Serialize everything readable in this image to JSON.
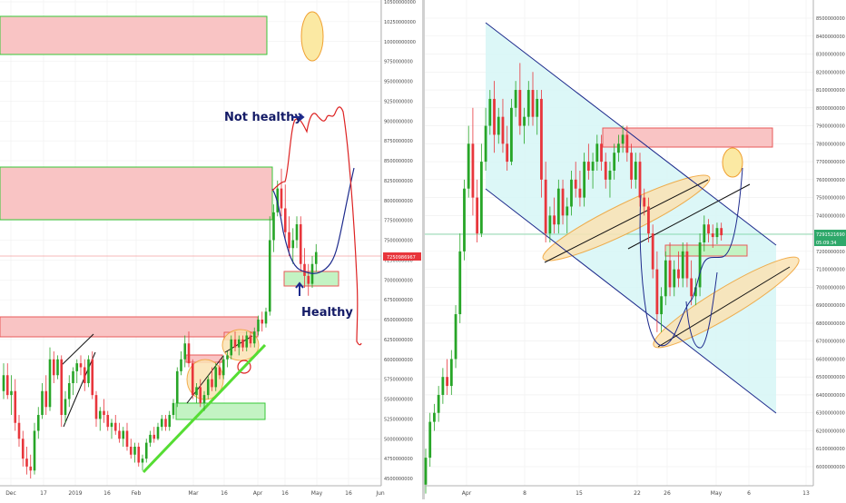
{
  "colors": {
    "up": "#27a527",
    "down": "#e8363c",
    "red_zone": "#f9b7b7",
    "green_zone": "#b6f0b6",
    "channel": "#1d2a8c",
    "ellipse_fill": "#fbe3b4",
    "ellipse_stroke": "#f0a030",
    "blue_path": "#1d2a8c",
    "red_path": "#dd2222",
    "teal_fill": "#d6f6f6",
    "green_line": "#55dd33"
  },
  "chart_data": [
    {
      "type": "candlestick",
      "panel": "left",
      "x_tick_labels": [
        "Dec",
        "17",
        "2019",
        "16",
        "Feb",
        "Mar",
        "16",
        "Apr",
        "16",
        "May",
        "16",
        "Jun"
      ],
      "y_tick_labels": [
        "10500000000",
        "10250000000",
        "10000000000",
        "9750000000",
        "9500000000",
        "9250000000",
        "9000000000",
        "8750000000",
        "8500000000",
        "8250000000",
        "8000000000",
        "7750000000",
        "7500000000",
        "7250000000",
        "7000000000",
        "6750000000",
        "6500000000",
        "6250000000",
        "6000000000",
        "5750000000",
        "5500000000",
        "5250000000",
        "5000000000",
        "4750000000",
        "4500000000"
      ],
      "ylim": [
        4450000000,
        10550000000
      ],
      "price_label": "7250986967",
      "annotations": [
        "Not healthy",
        "Healthy"
      ],
      "candles": [
        [
          5600000000,
          5950000000,
          5500000000,
          5800000000
        ],
        [
          5800000000,
          5950000000,
          5500000000,
          5550000000
        ],
        [
          5550000000,
          5800000000,
          5300000000,
          5600000000
        ],
        [
          5600000000,
          5750000000,
          5100000000,
          5200000000
        ],
        [
          5200000000,
          5300000000,
          4900000000,
          5000000000
        ],
        [
          5000000000,
          5100000000,
          4650000000,
          4750000000
        ],
        [
          4750000000,
          4900000000,
          4550000000,
          4650000000
        ],
        [
          4650000000,
          4800000000,
          4500000000,
          4600000000
        ],
        [
          4600000000,
          5200000000,
          4550000000,
          5100000000
        ],
        [
          5100000000,
          5400000000,
          5000000000,
          5300000000
        ],
        [
          5300000000,
          5700000000,
          5250000000,
          5600000000
        ],
        [
          5600000000,
          5800000000,
          5300000000,
          5400000000
        ],
        [
          5400000000,
          6150000000,
          5350000000,
          6000000000
        ],
        [
          6000000000,
          6100000000,
          5700000000,
          5800000000
        ],
        [
          5800000000,
          6050000000,
          5750000000,
          6000000000
        ],
        [
          6000000000,
          6050000000,
          5150000000,
          5300000000
        ],
        [
          5300000000,
          5600000000,
          5200000000,
          5500000000
        ],
        [
          5500000000,
          5800000000,
          5400000000,
          5700000000
        ],
        [
          5700000000,
          5900000000,
          5550000000,
          5850000000
        ],
        [
          5850000000,
          6000000000,
          5700000000,
          5950000000
        ],
        [
          5950000000,
          6050000000,
          5800000000,
          5900000000
        ],
        [
          5900000000,
          6000000000,
          5600000000,
          5700000000
        ],
        [
          5700000000,
          6050000000,
          5650000000,
          6000000000
        ],
        [
          6000000000,
          6100000000,
          5500000000,
          5550000000
        ],
        [
          5550000000,
          5600000000,
          5150000000,
          5250000000
        ],
        [
          5250000000,
          5400000000,
          5100000000,
          5350000000
        ],
        [
          5350000000,
          5500000000,
          5200000000,
          5300000000
        ],
        [
          5300000000,
          5350000000,
          5100000000,
          5150000000
        ],
        [
          5150000000,
          5250000000,
          5000000000,
          5200000000
        ],
        [
          5200000000,
          5300000000,
          5050000000,
          5100000000
        ],
        [
          5100000000,
          5200000000,
          4950000000,
          5000000000
        ],
        [
          5000000000,
          5150000000,
          4900000000,
          5100000000
        ],
        [
          5100000000,
          5200000000,
          4850000000,
          4900000000
        ],
        [
          4900000000,
          5000000000,
          4750000000,
          4800000000
        ],
        [
          4800000000,
          4950000000,
          4700000000,
          4900000000
        ],
        [
          4900000000,
          4950000000,
          4650000000,
          4700000000
        ],
        [
          4700000000,
          4800000000,
          4600000000,
          4750000000
        ],
        [
          4750000000,
          5000000000,
          4700000000,
          4950000000
        ],
        [
          4950000000,
          5100000000,
          4900000000,
          5050000000
        ],
        [
          5050000000,
          5150000000,
          4950000000,
          5000000000
        ],
        [
          5000000000,
          5200000000,
          4980000000,
          5150000000
        ],
        [
          5150000000,
          5300000000,
          5100000000,
          5250000000
        ],
        [
          5250000000,
          5300000000,
          5100000000,
          5150000000
        ],
        [
          5150000000,
          5350000000,
          5100000000,
          5300000000
        ],
        [
          5300000000,
          5500000000,
          5250000000,
          5450000000
        ],
        [
          5450000000,
          5900000000,
          5400000000,
          5850000000
        ],
        [
          5850000000,
          6100000000,
          5800000000,
          6000000000
        ],
        [
          6000000000,
          6300000000,
          5900000000,
          6200000000
        ],
        [
          6200000000,
          6350000000,
          5900000000,
          5950000000
        ],
        [
          5950000000,
          6000000000,
          5500000000,
          5550000000
        ],
        [
          5550000000,
          5700000000,
          5450000000,
          5650000000
        ],
        [
          5650000000,
          5750000000,
          5400000000,
          5450000000
        ],
        [
          5450000000,
          5600000000,
          5350000000,
          5550000000
        ],
        [
          5550000000,
          5800000000,
          5500000000,
          5750000000
        ],
        [
          5750000000,
          5900000000,
          5600000000,
          5650000000
        ],
        [
          5650000000,
          5950000000,
          5600000000,
          5900000000
        ],
        [
          5900000000,
          6000000000,
          5750000000,
          5800000000
        ],
        [
          5800000000,
          6050000000,
          5750000000,
          6000000000
        ],
        [
          6000000000,
          6100000000,
          5900000000,
          6050000000
        ],
        [
          6050000000,
          6300000000,
          6000000000,
          6250000000
        ],
        [
          6250000000,
          6350000000,
          6100000000,
          6150000000
        ],
        [
          6150000000,
          6300000000,
          6050000000,
          6250000000
        ],
        [
          6250000000,
          6300000000,
          6100000000,
          6150000000
        ],
        [
          6150000000,
          6350000000,
          6100000000,
          6300000000
        ],
        [
          6300000000,
          6350000000,
          6150000000,
          6200000000
        ],
        [
          6200000000,
          6400000000,
          6150000000,
          6350000000
        ],
        [
          6350000000,
          6550000000,
          6300000000,
          6500000000
        ],
        [
          6500000000,
          6600000000,
          6350000000,
          6450000000
        ],
        [
          6450000000,
          6650000000,
          6400000000,
          6600000000
        ],
        [
          6600000000,
          7800000000,
          6550000000,
          7500000000
        ],
        [
          7500000000,
          7950000000,
          7350000000,
          7850000000
        ],
        [
          7850000000,
          8250000000,
          7800000000,
          8150000000
        ],
        [
          8150000000,
          8400000000,
          7800000000,
          7900000000
        ],
        [
          7900000000,
          8200000000,
          7500000000,
          7600000000
        ],
        [
          7600000000,
          7800000000,
          7300000000,
          7400000000
        ],
        [
          7400000000,
          7650000000,
          7200000000,
          7500000000
        ],
        [
          7500000000,
          7800000000,
          7400000000,
          7700000000
        ],
        [
          7700000000,
          7800000000,
          7100000000,
          7200000000
        ],
        [
          7200000000,
          7400000000,
          6900000000,
          7050000000
        ],
        [
          7050000000,
          7200000000,
          6800000000,
          6950000000
        ],
        [
          6950000000,
          7300000000,
          6900000000,
          7200000000
        ],
        [
          7200000000,
          7450000000,
          7100000000,
          7350000000
        ]
      ]
    },
    {
      "type": "candlestick",
      "panel": "right",
      "x_tick_labels": [
        "Apr",
        "8",
        "15",
        "22",
        "26",
        "May",
        "6",
        "13"
      ],
      "y_tick_labels": [
        "8500000000",
        "8400000000",
        "8300000000",
        "8200000000",
        "8100000000",
        "8000000000",
        "7900000000",
        "7800000000",
        "7700000000",
        "7600000000",
        "7500000000",
        "7400000000",
        "7300000000",
        "7200000000",
        "7100000000",
        "7000000000",
        "6900000000",
        "6800000000",
        "6700000000",
        "6600000000",
        "6500000000",
        "6400000000",
        "6300000000",
        "6200000000",
        "6100000000",
        "6000000000"
      ],
      "ylim": [
        5950000000,
        8550000000
      ],
      "price_label": "7291521690",
      "countdown_label": "05:09:34",
      "candles": [
        [
          5900000000,
          6100000000,
          5850000000,
          6050000000
        ],
        [
          6050000000,
          6300000000,
          6000000000,
          6250000000
        ],
        [
          6250000000,
          6350000000,
          6200000000,
          6300000000
        ],
        [
          6300000000,
          6450000000,
          6250000000,
          6400000000
        ],
        [
          6400000000,
          6550000000,
          6350000000,
          6500000000
        ],
        [
          6500000000,
          6600000000,
          6400000000,
          6450000000
        ],
        [
          6450000000,
          6650000000,
          6400000000,
          6600000000
        ],
        [
          6600000000,
          6900000000,
          6550000000,
          6850000000
        ],
        [
          6850000000,
          7300000000,
          6800000000,
          7200000000
        ],
        [
          7200000000,
          7600000000,
          7150000000,
          7550000000
        ],
        [
          7550000000,
          7900000000,
          7500000000,
          7800000000
        ],
        [
          7800000000,
          8000000000,
          7400000000,
          7500000000
        ],
        [
          7500000000,
          7600000000,
          7250000000,
          7300000000
        ],
        [
          7300000000,
          7800000000,
          7280000000,
          7700000000
        ],
        [
          7700000000,
          8000000000,
          7650000000,
          7900000000
        ],
        [
          7900000000,
          8100000000,
          7850000000,
          8050000000
        ],
        [
          8050000000,
          8150000000,
          7750000000,
          7850000000
        ],
        [
          7850000000,
          8000000000,
          7800000000,
          7950000000
        ],
        [
          7950000000,
          8050000000,
          7750000000,
          7800000000
        ],
        [
          7800000000,
          7900000000,
          7650000000,
          7700000000
        ],
        [
          7700000000,
          8050000000,
          7680000000,
          8000000000
        ],
        [
          8000000000,
          8150000000,
          7950000000,
          8100000000
        ],
        [
          8100000000,
          8250000000,
          7850000000,
          7900000000
        ],
        [
          7900000000,
          8000000000,
          7800000000,
          7950000000
        ],
        [
          7950000000,
          8150000000,
          7900000000,
          8100000000
        ],
        [
          8100000000,
          8200000000,
          7900000000,
          7950000000
        ],
        [
          7950000000,
          8100000000,
          7850000000,
          8050000000
        ],
        [
          8050000000,
          8100000000,
          7500000000,
          7600000000
        ],
        [
          7600000000,
          7700000000,
          7250000000,
          7300000000
        ],
        [
          7300000000,
          7450000000,
          7250000000,
          7400000000
        ],
        [
          7400000000,
          7500000000,
          7300000000,
          7350000000
        ],
        [
          7350000000,
          7600000000,
          7300000000,
          7550000000
        ],
        [
          7550000000,
          7600000000,
          7350000000,
          7400000000
        ],
        [
          7400000000,
          7500000000,
          7300000000,
          7450000000
        ],
        [
          7450000000,
          7650000000,
          7400000000,
          7600000000
        ],
        [
          7600000000,
          7700000000,
          7500000000,
          7550000000
        ],
        [
          7550000000,
          7650000000,
          7450000000,
          7500000000
        ],
        [
          7500000000,
          7750000000,
          7450000000,
          7700000000
        ],
        [
          7700000000,
          7800000000,
          7600000000,
          7650000000
        ],
        [
          7650000000,
          7750000000,
          7550000000,
          7700000000
        ],
        [
          7700000000,
          7850000000,
          7650000000,
          7800000000
        ],
        [
          7800000000,
          7850000000,
          7650000000,
          7700000000
        ],
        [
          7700000000,
          7750000000,
          7550000000,
          7600000000
        ],
        [
          7600000000,
          7700000000,
          7500000000,
          7650000000
        ],
        [
          7650000000,
          7800000000,
          7600000000,
          7750000000
        ],
        [
          7750000000,
          7850000000,
          7700000000,
          7800000000
        ],
        [
          7800000000,
          7900000000,
          7750000000,
          7850000000
        ],
        [
          7850000000,
          7900000000,
          7700000000,
          7750000000
        ],
        [
          7750000000,
          7800000000,
          7550000000,
          7600000000
        ],
        [
          7600000000,
          7750000000,
          7550000000,
          7700000000
        ],
        [
          7700000000,
          7750000000,
          7450000000,
          7500000000
        ],
        [
          7500000000,
          7550000000,
          7400000000,
          7450000000
        ],
        [
          7450000000,
          7500000000,
          7250000000,
          7300000000
        ],
        [
          7300000000,
          7350000000,
          7050000000,
          7100000000
        ],
        [
          7100000000,
          7200000000,
          6750000000,
          6850000000
        ],
        [
          6850000000,
          7000000000,
          6750000000,
          6950000000
        ],
        [
          6950000000,
          7200000000,
          6900000000,
          7150000000
        ],
        [
          7150000000,
          7250000000,
          6950000000,
          7000000000
        ],
        [
          7000000000,
          7150000000,
          6950000000,
          7100000000
        ],
        [
          7100000000,
          7200000000,
          7000000000,
          7050000000
        ],
        [
          7050000000,
          7250000000,
          7000000000,
          7200000000
        ],
        [
          7200000000,
          7250000000,
          7000000000,
          7050000000
        ],
        [
          7050000000,
          7150000000,
          6900000000,
          6950000000
        ],
        [
          6950000000,
          7050000000,
          6900000000,
          7000000000
        ],
        [
          7000000000,
          7300000000,
          6950000000,
          7250000000
        ],
        [
          7250000000,
          7400000000,
          7200000000,
          7350000000
        ],
        [
          7350000000,
          7380000000,
          7250000000,
          7300000000
        ],
        [
          7300000000,
          7350000000,
          7220000000,
          7280000000
        ],
        [
          7280000000,
          7360000000,
          7240000000,
          7330000000
        ],
        [
          7330000000,
          7360000000,
          7260000000,
          7290000000
        ]
      ]
    }
  ]
}
